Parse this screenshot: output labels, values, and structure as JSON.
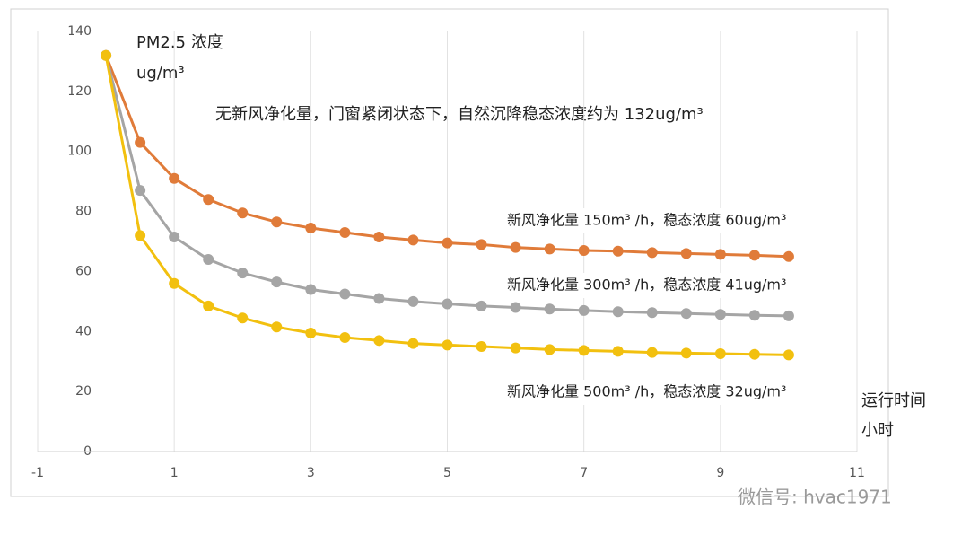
{
  "chart_data": {
    "type": "line",
    "ylabel_lines": [
      "PM2.5 浓度",
      "ug/m³"
    ],
    "annotation": "无新风净化量，门窗紧闭状态下，自然沉降稳态浓度约为 132ug/m³",
    "xlabel_lines": [
      "运行时间",
      "小时"
    ],
    "x": [
      0,
      0.5,
      1,
      1.5,
      2,
      2.5,
      3,
      3.5,
      4,
      4.5,
      5,
      5.5,
      6,
      6.5,
      7,
      7.5,
      8,
      8.5,
      9,
      9.5,
      10
    ],
    "series": [
      {
        "name": "新风净化量 150m³ /h，稳态浓度 60ug/m³",
        "color": "#e07b39",
        "values": [
          132,
          103,
          91,
          84,
          79.5,
          76.5,
          74.5,
          73,
          71.5,
          70.5,
          69.5,
          69,
          68,
          67.5,
          67,
          66.8,
          66.3,
          66,
          65.7,
          65.4,
          65
        ]
      },
      {
        "name": "新风净化量 300m³ /h，稳态浓度 41ug/m³",
        "color": "#a5a5a5",
        "values": [
          132,
          87,
          71.5,
          64,
          59.5,
          56.5,
          54,
          52.5,
          51,
          50,
          49.2,
          48.5,
          48,
          47.5,
          47,
          46.6,
          46.3,
          46,
          45.7,
          45.4,
          45.2
        ]
      },
      {
        "name": "新风净化量 500m³ /h，稳态浓度 32ug/m³",
        "color": "#f2c00f",
        "values": [
          132,
          72,
          56,
          48.5,
          44.5,
          41.5,
          39.5,
          38,
          37,
          36,
          35.5,
          35,
          34.5,
          34,
          33.7,
          33.4,
          33,
          32.8,
          32.6,
          32.4,
          32.2
        ]
      }
    ],
    "xlim": [
      -1,
      11
    ],
    "xticks": [
      -1,
      1,
      3,
      5,
      7,
      9,
      11
    ],
    "ylim": [
      0,
      140
    ],
    "yticks": [
      0,
      20,
      40,
      60,
      80,
      100,
      120,
      140
    ],
    "grid": "x"
  },
  "watermark": "微信号: hvac1971"
}
